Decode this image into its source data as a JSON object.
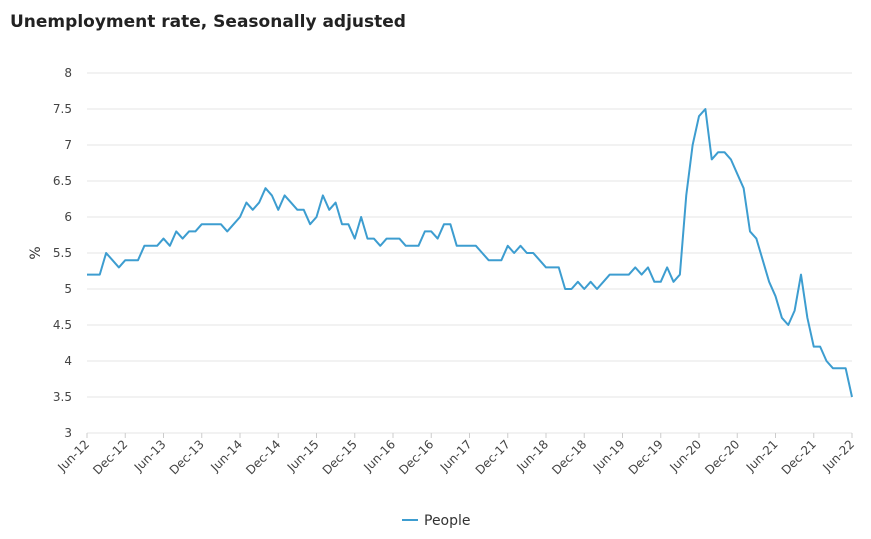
{
  "chart_data": {
    "type": "line",
    "title": "Unemployment rate, Seasonally adjusted",
    "xlabel": "",
    "ylabel": "%",
    "ylim": [
      3,
      8
    ],
    "yticks": [
      "3",
      "3.5",
      "4",
      "4.5",
      "5",
      "5.5",
      "6",
      "6.5",
      "7",
      "7.5",
      "8"
    ],
    "grid": true,
    "legend_position": "bottom-center",
    "colors": {
      "line": "#3d9dd0",
      "grid": "#e6e6e6",
      "text": "#444444"
    },
    "xtick_labels": [
      "Jun-12",
      "Dec-12",
      "Jun-13",
      "Dec-13",
      "Jun-14",
      "Dec-14",
      "Jun-15",
      "Dec-15",
      "Jun-16",
      "Dec-16",
      "Jun-17",
      "Dec-17",
      "Jun-18",
      "Dec-18",
      "Jun-19",
      "Dec-19",
      "Jun-20",
      "Dec-20",
      "Jun-21",
      "Dec-21",
      "Jun-22"
    ],
    "x_start": "Jun-12",
    "series": [
      {
        "name": "People",
        "values": [
          5.2,
          5.2,
          5.2,
          5.5,
          5.4,
          5.3,
          5.4,
          5.4,
          5.4,
          5.6,
          5.6,
          5.6,
          5.7,
          5.6,
          5.8,
          5.7,
          5.8,
          5.8,
          5.9,
          5.9,
          5.9,
          5.9,
          5.8,
          5.9,
          6.0,
          6.2,
          6.1,
          6.2,
          6.4,
          6.3,
          6.1,
          6.3,
          6.2,
          6.1,
          6.1,
          5.9,
          6.0,
          6.3,
          6.1,
          6.2,
          5.9,
          5.9,
          5.7,
          6.0,
          5.7,
          5.7,
          5.6,
          5.7,
          5.7,
          5.7,
          5.6,
          5.6,
          5.6,
          5.8,
          5.8,
          5.7,
          5.9,
          5.9,
          5.6,
          5.6,
          5.6,
          5.6,
          5.5,
          5.4,
          5.4,
          5.4,
          5.6,
          5.5,
          5.6,
          5.5,
          5.5,
          5.4,
          5.3,
          5.3,
          5.3,
          5.0,
          5.0,
          5.1,
          5.0,
          5.1,
          5.0,
          5.1,
          5.2,
          5.2,
          5.2,
          5.2,
          5.3,
          5.2,
          5.3,
          5.1,
          5.1,
          5.3,
          5.1,
          5.2,
          6.3,
          7.0,
          7.4,
          7.5,
          6.8,
          6.9,
          6.9,
          6.8,
          6.6,
          6.4,
          5.8,
          5.7,
          5.4,
          5.1,
          4.9,
          4.6,
          4.5,
          4.7,
          5.2,
          4.6,
          4.2,
          4.2,
          4.0,
          3.9,
          3.9,
          3.9,
          3.5
        ]
      }
    ]
  }
}
